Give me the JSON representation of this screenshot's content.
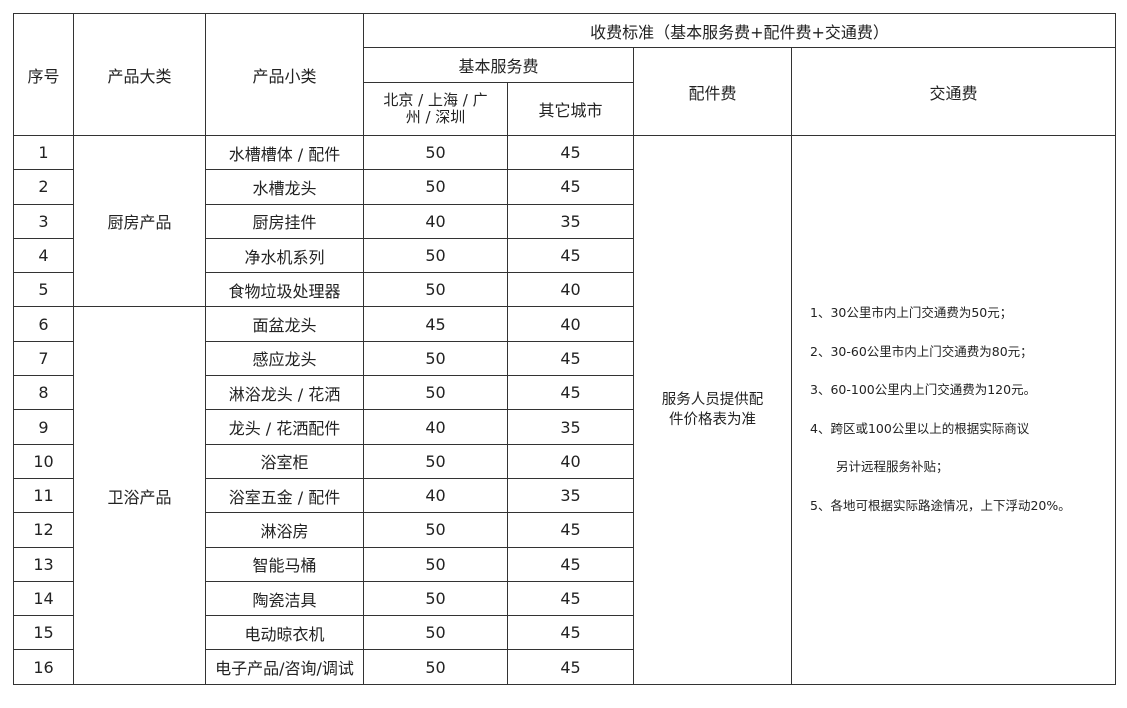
{
  "header": {
    "seq": "序号",
    "category": "产品大类",
    "subcategory": "产品小类",
    "fee_standard": "收费标准（基本服务费+配件费+交通费）",
    "basic_fee": "基本服务费",
    "tier1_city": "北京 / 上海 / 广州 / 深圳",
    "other_city": "其它城市",
    "parts_fee": "配件费",
    "traffic_fee": "交通费"
  },
  "categories": [
    {
      "name": "厨房产品",
      "rows": 5
    },
    {
      "name": "卫浴产品",
      "rows": 11
    }
  ],
  "rows": [
    {
      "seq": "1",
      "sub": "水槽槽体 / 配件",
      "tier1": "50",
      "other": "45"
    },
    {
      "seq": "2",
      "sub": "水槽龙头",
      "tier1": "50",
      "other": "45"
    },
    {
      "seq": "3",
      "sub": "厨房挂件",
      "tier1": "40",
      "other": "35"
    },
    {
      "seq": "4",
      "sub": "净水机系列",
      "tier1": "50",
      "other": "45"
    },
    {
      "seq": "5",
      "sub": "食物垃圾处理器",
      "tier1": "50",
      "other": "40"
    },
    {
      "seq": "6",
      "sub": "面盆龙头",
      "tier1": "45",
      "other": "40"
    },
    {
      "seq": "7",
      "sub": "感应龙头",
      "tier1": "50",
      "other": "45"
    },
    {
      "seq": "8",
      "sub": "淋浴龙头 / 花洒",
      "tier1": "50",
      "other": "45"
    },
    {
      "seq": "9",
      "sub": "龙头 / 花洒配件",
      "tier1": "40",
      "other": "35"
    },
    {
      "seq": "10",
      "sub": "浴室柜",
      "tier1": "50",
      "other": "40"
    },
    {
      "seq": "11",
      "sub": "浴室五金 / 配件",
      "tier1": "40",
      "other": "35"
    },
    {
      "seq": "12",
      "sub": "淋浴房",
      "tier1": "50",
      "other": "45"
    },
    {
      "seq": "13",
      "sub": "智能马桶",
      "tier1": "50",
      "other": "45"
    },
    {
      "seq": "14",
      "sub": "陶瓷洁具",
      "tier1": "50",
      "other": "45"
    },
    {
      "seq": "15",
      "sub": "电动晾衣机",
      "tier1": "50",
      "other": "45"
    },
    {
      "seq": "16",
      "sub": "电子产品/咨询/调试",
      "tier1": "50",
      "other": "45"
    }
  ],
  "parts_note": "服务人员提供配件价格表为准",
  "traffic_notes": [
    "1、30公里市内上门交通费为50元；",
    "2、30-60公里市内上门交通费为80元；",
    "3、60-100公里内上门交通费为120元。",
    "4、跨区或100公里以上的根据实际商议",
    "另计远程服务补贴；",
    "5、各地可根据实际路途情况，上下浮动20%。"
  ]
}
